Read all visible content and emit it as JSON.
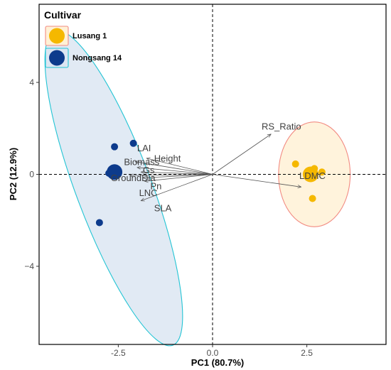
{
  "chart_data": {
    "type": "scatter",
    "subtype": "pca-biplot",
    "xlabel": "PC1 (80.7%)",
    "ylabel": "PC2 (12.9%)",
    "xlim": [
      -4.6,
      4.6
    ],
    "ylim": [
      -7.4,
      7.4
    ],
    "x_ticks": [
      -2.5,
      0.0,
      2.5
    ],
    "x_tick_labels": [
      "-2.5",
      "0.0",
      "2.5"
    ],
    "y_ticks": [
      -4,
      0,
      4
    ],
    "y_tick_labels": [
      "−4",
      "0",
      "4"
    ],
    "grid": false,
    "reference_lines": {
      "x": 0,
      "y": 0,
      "style": "dashed"
    },
    "legend": {
      "title": "Cultivar",
      "position": "top-left"
    },
    "series": [
      {
        "name": "Lusang 1",
        "color": "#F5B800",
        "ellipse_fill": "#FFF1D6",
        "ellipse_stroke": "#F28B82",
        "points": [
          [
            2.2,
            0.45
          ],
          [
            2.7,
            0.25
          ],
          [
            2.9,
            0.1
          ],
          [
            2.65,
            -1.05
          ],
          [
            2.6,
            -0.1
          ]
        ],
        "centroid": [
          2.6,
          0.0
        ],
        "ellipse": {
          "center": [
            2.7,
            0.0
          ],
          "rx": 0.95,
          "ry": 2.28,
          "angle_deg": 0
        }
      },
      {
        "name": "Nongsang 14",
        "color": "#0D3B8C",
        "ellipse_fill": "#DCE6F2",
        "ellipse_stroke": "#22C4D4",
        "points": [
          [
            -2.6,
            1.2
          ],
          [
            -2.1,
            1.35
          ],
          [
            -2.75,
            0.05
          ],
          [
            -3.0,
            -2.1
          ]
        ],
        "centroid": [
          -2.6,
          0.1
        ],
        "ellipse": {
          "center": [
            -2.62,
            -0.6
          ],
          "rx": 1.0,
          "ry": 7.3,
          "angle_deg": -20.6
        }
      }
    ],
    "loadings": [
      {
        "label": "RS_Ratio",
        "x": 1.55,
        "y": 1.75,
        "lx": 1.3,
        "ly": 1.95
      },
      {
        "label": "LDMC",
        "x": 2.35,
        "y": -0.55,
        "lx": 2.3,
        "ly": -0.2
      },
      {
        "label": "Height",
        "x": -2.05,
        "y": 0.55,
        "lx": -1.55,
        "ly": 0.55
      },
      {
        "label": "LAI",
        "x": -1.75,
        "y": 0.7,
        "lx": -2.0,
        "ly": 1.0
      },
      {
        "label": "Biomass",
        "x": -2.0,
        "y": 0.3,
        "lx": -2.35,
        "ly": 0.4
      },
      {
        "label": "Gs",
        "x": -1.9,
        "y": 0.1,
        "lx": -1.85,
        "ly": 0.05
      },
      {
        "label": "GroundDia",
        "x": -2.2,
        "y": -0.05,
        "lx": -2.7,
        "ly": -0.3
      },
      {
        "label": "Pn",
        "x": -1.85,
        "y": -0.15,
        "lx": -1.65,
        "ly": -0.65
      },
      {
        "label": "LNC",
        "x": -1.8,
        "y": -0.3,
        "lx": -1.95,
        "ly": -0.95
      },
      {
        "label": "SLA",
        "x": -1.9,
        "y": -1.15,
        "lx": -1.55,
        "ly": -1.6
      }
    ]
  }
}
